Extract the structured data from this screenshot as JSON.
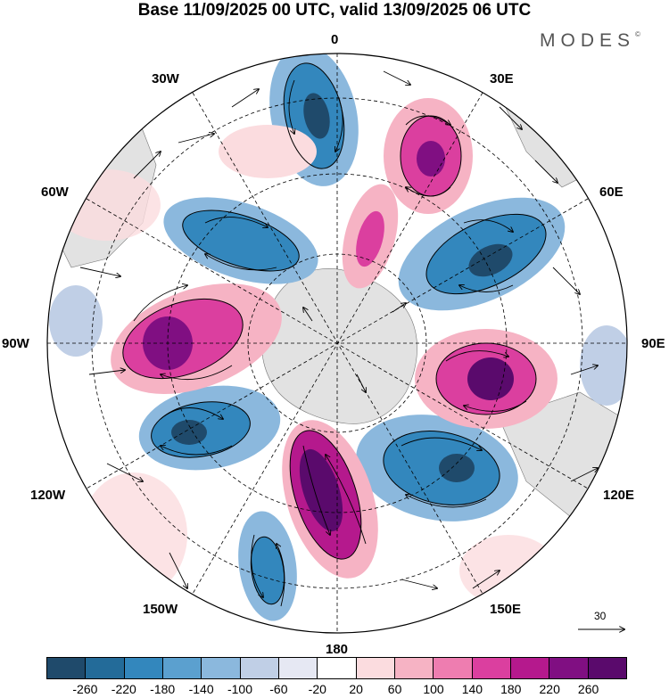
{
  "title": "Base 11/09/2025 00 UTC, valid 13/09/2025 06 UTC",
  "brand": "MODES",
  "brand_mark": "©",
  "longitude_labels": {
    "l0": "0",
    "l30e": "30E",
    "l60e": "60E",
    "l90e": "90E",
    "l120e": "120E",
    "l150e": "150E",
    "l180": "180",
    "l150w": "150W",
    "l120w": "120W",
    "l90w": "90W",
    "l60w": "60W",
    "l30w": "30W"
  },
  "vector_reference": "30",
  "colorbar": {
    "ticks": [
      "-260",
      "-220",
      "-180",
      "-140",
      "-100",
      "-60",
      "-20",
      "20",
      "60",
      "100",
      "140",
      "180",
      "220",
      "260"
    ],
    "colors": [
      "#1f4a6b",
      "#236b99",
      "#3387bd",
      "#5ba0cf",
      "#8bb8dd",
      "#c0cfe6",
      "#e6e8f3",
      "#ffffff",
      "#fbdcdf",
      "#f6b3c4",
      "#ee7db0",
      "#db3f9f",
      "#b5198d",
      "#800f82",
      "#5a0a6c"
    ]
  },
  "colors": {
    "land": "#e2e2e2",
    "ocean": "#ffffff",
    "grid": "#000000"
  }
}
